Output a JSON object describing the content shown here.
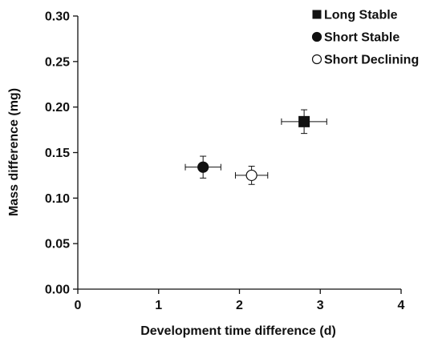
{
  "chart_data": {
    "type": "scatter",
    "title": "",
    "xlabel": "Development time difference (d)",
    "ylabel": "Mass difference (mg)",
    "xlim": [
      0,
      4
    ],
    "ylim": [
      0,
      0.3
    ],
    "x_ticks": [
      "0",
      "1",
      "2",
      "3",
      "4"
    ],
    "y_ticks": [
      "0.00",
      "0.05",
      "0.10",
      "0.15",
      "0.20",
      "0.25",
      "0.30"
    ],
    "grid": false,
    "legend_position": "top-right",
    "series": [
      {
        "name": "Long Stable",
        "marker": "square",
        "fill": "#111111",
        "x": 2.8,
        "y": 0.184,
        "x_err": 0.28,
        "y_err": 0.013
      },
      {
        "name": "Short Stable",
        "marker": "circle",
        "fill": "#111111",
        "x": 1.55,
        "y": 0.134,
        "x_err": 0.22,
        "y_err": 0.012
      },
      {
        "name": "Short Declining",
        "marker": "circle",
        "fill": "#ffffff",
        "x": 2.15,
        "y": 0.125,
        "x_err": 0.2,
        "y_err": 0.01
      }
    ]
  }
}
